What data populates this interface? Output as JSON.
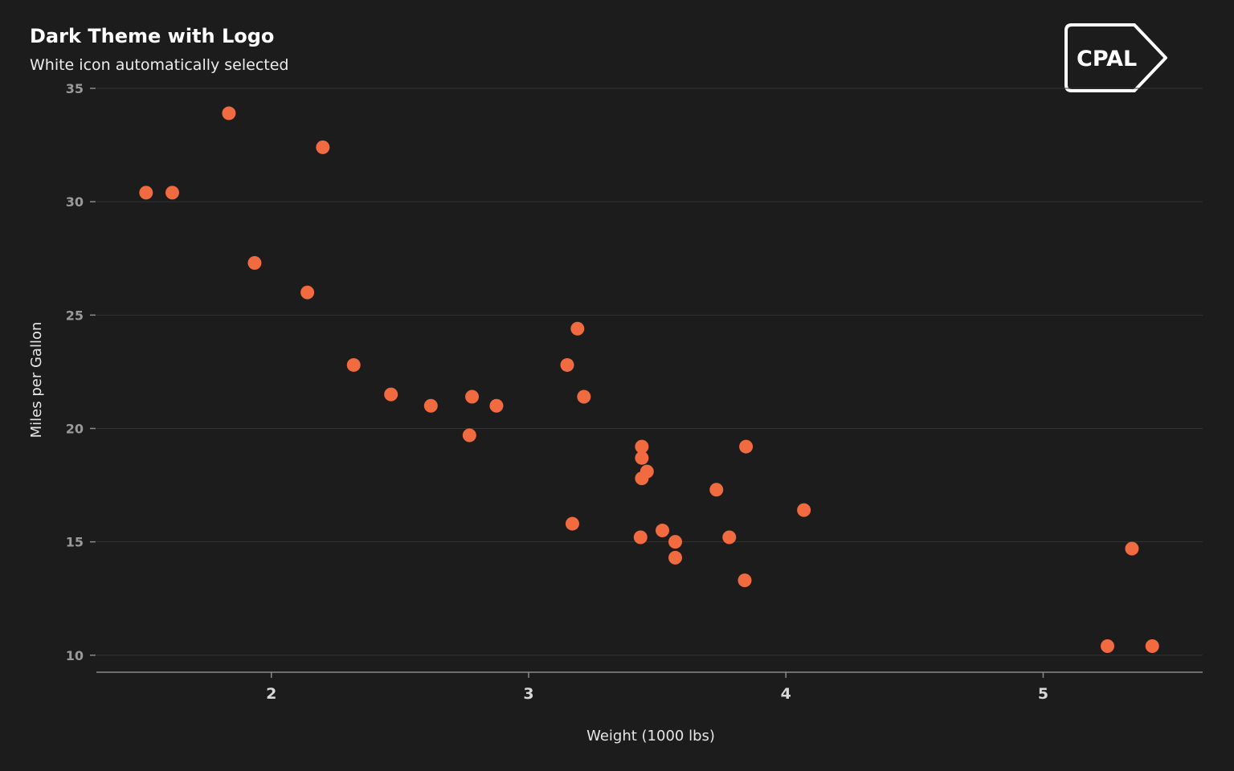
{
  "header": {
    "title": "Dark Theme with Logo",
    "subtitle": "White icon automatically selected"
  },
  "logo": {
    "text": "CPAL",
    "icon": "tag-logo",
    "color": "#ffffff"
  },
  "colors": {
    "background": "#1c1c1c",
    "point": "#f26a3f",
    "grid": "#333333",
    "axis": "#8a8a8a"
  },
  "chart_data": {
    "type": "scatter",
    "title": "Dark Theme with Logo",
    "subtitle": "White icon automatically selected",
    "xlabel": "Weight (1000 lbs)",
    "ylabel": "Miles per Gallon",
    "xlim": [
      1.32,
      5.62
    ],
    "ylim": [
      9.25,
      35
    ],
    "xticks": [
      2,
      3,
      4,
      5
    ],
    "yticks": [
      10,
      15,
      20,
      25,
      30,
      35
    ],
    "grid": "horizontal",
    "legend": "none",
    "series": [
      {
        "x": [
          2.62,
          2.875,
          2.32,
          3.215,
          3.44,
          3.46,
          3.57,
          3.19,
          3.15,
          3.44,
          3.44,
          4.07,
          3.73,
          3.78,
          5.25,
          5.424,
          5.345,
          2.2,
          1.615,
          1.835,
          2.465,
          3.52,
          3.435,
          3.84,
          3.845,
          1.935,
          2.14,
          1.513,
          3.17,
          2.77,
          3.57,
          2.78
        ],
        "y": [
          21.0,
          21.0,
          22.8,
          21.4,
          18.7,
          18.1,
          14.3,
          24.4,
          22.8,
          19.2,
          17.8,
          16.4,
          17.3,
          15.2,
          10.4,
          10.4,
          14.7,
          32.4,
          30.4,
          33.9,
          21.5,
          15.5,
          15.2,
          13.3,
          19.2,
          27.3,
          26.0,
          30.4,
          15.8,
          19.7,
          15.0,
          21.4
        ]
      }
    ]
  }
}
